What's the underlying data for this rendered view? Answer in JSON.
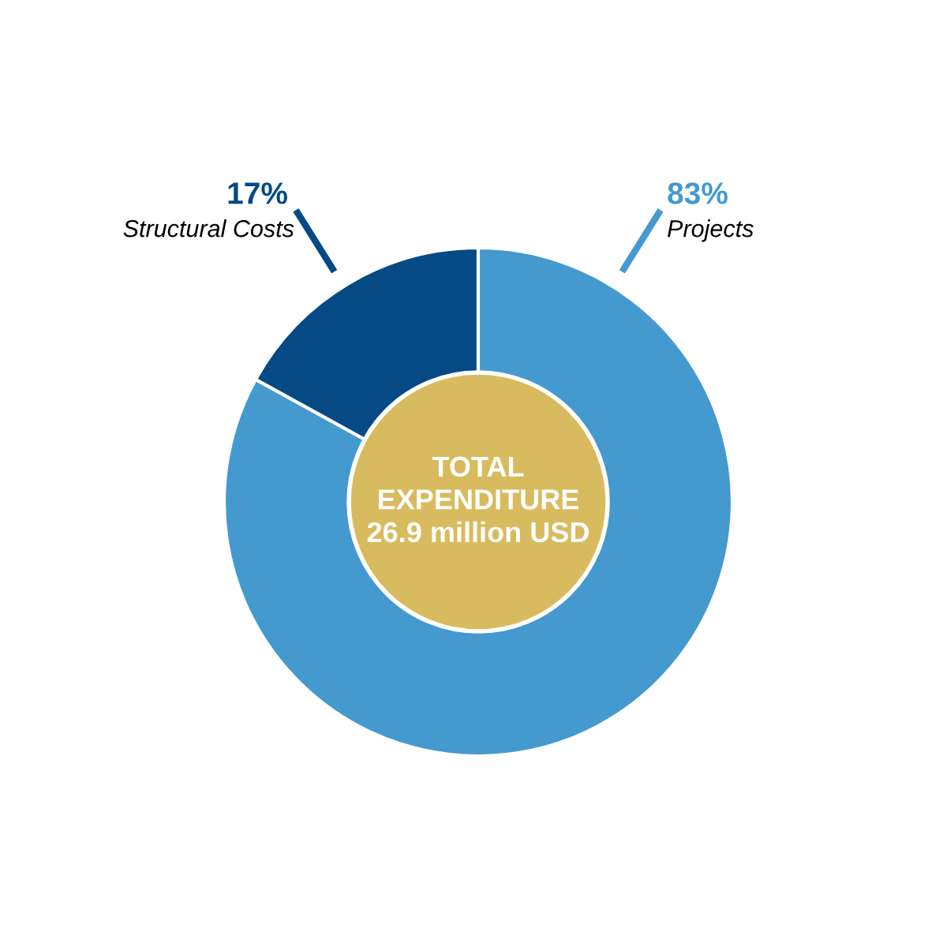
{
  "chart_data": {
    "type": "donut",
    "categories": [
      "Structural Costs",
      "Projects"
    ],
    "values": [
      17,
      83
    ],
    "colors": [
      "#054a85",
      "#4499cf"
    ],
    "value_labels": [
      "17%",
      "83%"
    ],
    "annotations": [
      "TOTAL\nEXPENDITURE\n26.9 million USD"
    ]
  }
}
